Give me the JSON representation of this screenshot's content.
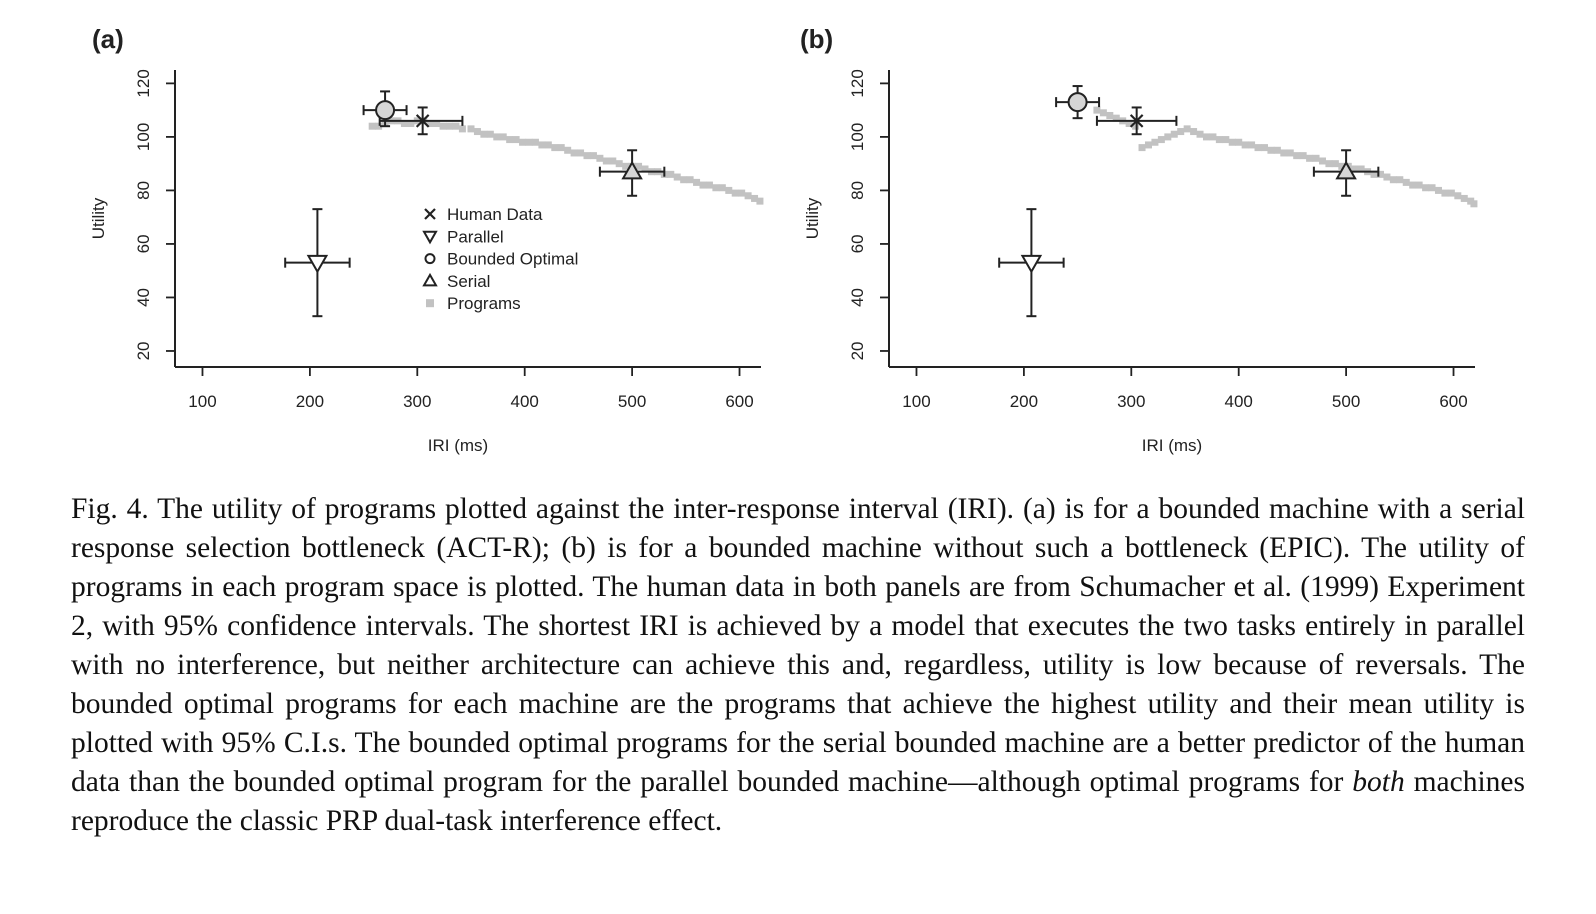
{
  "chart_data": [
    {
      "type": "scatter",
      "panel_label": "(a)",
      "xlabel": "IRI (ms)",
      "ylabel": "Utility",
      "xlim": [
        80,
        620
      ],
      "ylim": [
        17,
        125
      ],
      "xticks": [
        100,
        200,
        300,
        400,
        500,
        600
      ],
      "yticks": [
        20,
        40,
        60,
        80,
        100,
        120
      ],
      "grid": false,
      "legend_position": "center",
      "legend": [
        {
          "marker": "x",
          "label": "Human Data"
        },
        {
          "marker": "triangle-down",
          "label": "Parallel"
        },
        {
          "marker": "circle",
          "label": "Bounded Optimal"
        },
        {
          "marker": "triangle-up",
          "label": "Serial"
        },
        {
          "marker": "square",
          "label": "Programs"
        }
      ],
      "points": [
        {
          "series": "Human Data",
          "marker": "x",
          "x": 305,
          "y": 106,
          "x_err": [
            265,
            342
          ],
          "y_err": [
            101,
            111
          ]
        },
        {
          "series": "Parallel",
          "marker": "triangle-down",
          "x": 207,
          "y": 53,
          "x_err": [
            177,
            237
          ],
          "y_err": [
            33,
            73
          ]
        },
        {
          "series": "Bounded Optimal",
          "marker": "circle",
          "x": 270,
          "y": 110,
          "x_err": [
            250,
            290
          ],
          "y_err": [
            104,
            117
          ]
        },
        {
          "series": "Serial",
          "marker": "triangle-up",
          "x": 500,
          "y": 87,
          "x_err": [
            470,
            530
          ],
          "y_err": [
            78,
            95
          ]
        }
      ],
      "programs": {
        "x": [
          258,
          264,
          270,
          276,
          282,
          288,
          294,
          300,
          306,
          312,
          318,
          324,
          330,
          336,
          342,
          350,
          356,
          362,
          368,
          374,
          380,
          386,
          392,
          398,
          404,
          410,
          416,
          422,
          428,
          434,
          440,
          446,
          452,
          458,
          464,
          470,
          476,
          482,
          488,
          494,
          500,
          506,
          512,
          518,
          524,
          530,
          536,
          542,
          548,
          554,
          560,
          566,
          572,
          578,
          584,
          590,
          596,
          602,
          608,
          614,
          619
        ],
        "y": [
          104,
          104,
          105,
          106,
          106,
          105,
          105,
          106,
          106,
          105,
          105,
          104,
          104,
          104,
          103,
          103,
          102,
          101,
          101,
          100,
          100,
          99,
          99,
          98,
          98,
          98,
          97,
          97,
          96,
          96,
          95,
          94,
          94,
          93,
          93,
          92,
          91,
          91,
          90,
          89,
          89,
          89,
          88,
          87,
          87,
          86,
          86,
          85,
          84,
          84,
          83,
          82,
          82,
          81,
          81,
          80,
          79,
          79,
          78,
          77,
          76
        ]
      }
    },
    {
      "type": "scatter",
      "panel_label": "(b)",
      "xlabel": "IRI (ms)",
      "ylabel": "Utility",
      "xlim": [
        80,
        620
      ],
      "ylim": [
        17,
        125
      ],
      "xticks": [
        100,
        200,
        300,
        400,
        500,
        600
      ],
      "yticks": [
        20,
        40,
        60,
        80,
        100,
        120
      ],
      "grid": false,
      "points": [
        {
          "series": "Human Data",
          "marker": "x",
          "x": 305,
          "y": 106,
          "x_err": [
            268,
            342
          ],
          "y_err": [
            101,
            111
          ]
        },
        {
          "series": "Parallel",
          "marker": "triangle-down",
          "x": 207,
          "y": 53,
          "x_err": [
            177,
            237
          ],
          "y_err": [
            33,
            73
          ]
        },
        {
          "series": "Bounded Optimal",
          "marker": "circle",
          "x": 250,
          "y": 113,
          "x_err": [
            230,
            270
          ],
          "y_err": [
            107,
            119
          ]
        },
        {
          "series": "Serial",
          "marker": "triangle-up",
          "x": 500,
          "y": 87,
          "x_err": [
            470,
            530
          ],
          "y_err": [
            78,
            95
          ]
        }
      ],
      "programs": {
        "x": [
          268,
          274,
          280,
          286,
          292,
          298,
          304,
          310,
          316,
          322,
          328,
          334,
          340,
          346,
          352,
          358,
          364,
          370,
          376,
          382,
          388,
          394,
          400,
          406,
          412,
          418,
          424,
          430,
          436,
          442,
          448,
          454,
          460,
          466,
          472,
          478,
          484,
          490,
          496,
          502,
          508,
          514,
          520,
          526,
          532,
          538,
          544,
          550,
          556,
          562,
          568,
          574,
          580,
          586,
          592,
          598,
          604,
          610,
          616,
          619
        ],
        "y": [
          110,
          109,
          108,
          107,
          106,
          105,
          104,
          96,
          97,
          98,
          99,
          100,
          101,
          102,
          103,
          102,
          101,
          100,
          100,
          99,
          99,
          98,
          98,
          97,
          97,
          96,
          96,
          95,
          95,
          94,
          94,
          93,
          93,
          92,
          92,
          91,
          90,
          90,
          89,
          89,
          88,
          88,
          87,
          86,
          86,
          85,
          84,
          84,
          83,
          82,
          82,
          81,
          81,
          80,
          79,
          79,
          78,
          77,
          76,
          75
        ]
      }
    }
  ],
  "caption": {
    "part1": "Fig. 4.  The utility of programs plotted against the inter-response interval (IRI). (a) is for a bounded machine with a serial response selection bottleneck (ACT-R); (b) is for a bounded machine without such a bottleneck (EPIC). The utility of programs in each program space is plotted. The human data in both panels are from Schumacher et al. (1999) Experiment 2, with 95% confidence intervals. The shortest IRI is achieved by a model that executes the two tasks entirely in parallel with no interference, but neither architecture can achieve this and, regardless, utility is low because of reversals. The bounded optimal programs for each machine are the programs that achieve the highest utility and their mean utility is plotted with 95% C.I.s. The bounded optimal programs for the serial bounded machine are a better predictor of the human data than the bounded optimal program for the parallel bounded machine—although optimal programs for ",
    "emphasis": "both",
    "part2": " machines reproduce the classic PRP dual-task interference effect."
  },
  "colors": {
    "ink": "#222222",
    "programs": "#c2c2c2",
    "marker_fill": "#d6d6d6"
  }
}
